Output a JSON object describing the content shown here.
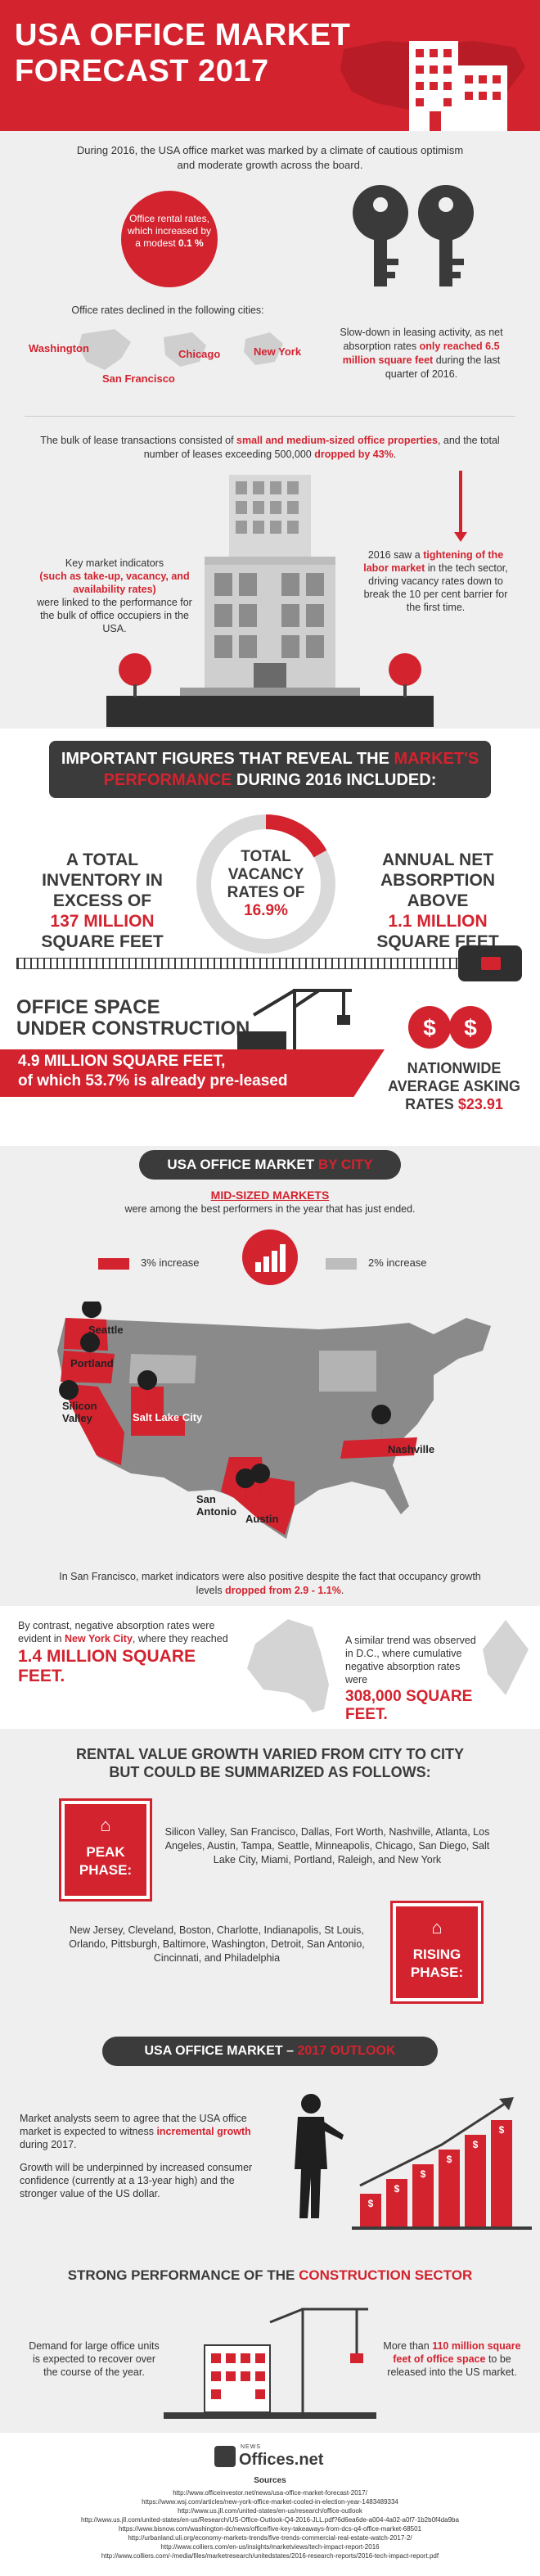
{
  "header": {
    "title_line1": "USA OFFICE MARKET",
    "title_line2": "FORECAST 2017"
  },
  "intro": {
    "text": "During 2016, the USA office market was marked by a climate of cautious optimism and moderate growth across the board."
  },
  "rental": {
    "circle_text": "Office rental rates, which increased by a modest",
    "circle_value": "0.1 %",
    "declined_text": "Office rates declined in the following cities:",
    "cities": [
      "Washington",
      "Chicago",
      "New York",
      "San Francisco"
    ]
  },
  "keys": {
    "text_pre": "Slow-down in leasing activity, as net absorption rates",
    "text_bold": "only reached 6.5 million square feet",
    "text_post": "during the last quarter of 2016."
  },
  "lease": {
    "pre": "The bulk of lease transactions consisted of",
    "bold1": "small and medium-sized office properties",
    "mid": ", and the total number of leases exceeding 500,000",
    "bold2": "dropped by 43%",
    "post": "."
  },
  "indicators": {
    "line1": "Key market indicators",
    "bold": "(such as take-up, vacancy, and availability rates)",
    "line2": "were linked to the performance for the bulk of office occupiers in the USA."
  },
  "tech": {
    "pre": "2016 saw a",
    "bold": "tightening of the labor market",
    "post": "in the tech sector, driving vacancy rates down to break the 10 per cent barrier for the first time."
  },
  "important": {
    "pre": "IMPORTANT FIGURES THAT REVEAL THE",
    "red": "MARKET'S PERFORMANCE",
    "post": "DURING 2016 INCLUDED:"
  },
  "inventory": {
    "pre": "A TOTAL INVENTORY IN EXCESS OF",
    "value": "137 MILLION",
    "post": "SQUARE FEET"
  },
  "vacancy": {
    "label": "TOTAL VACANCY RATES OF",
    "value": "16.9%",
    "fraction": 0.169
  },
  "absorption": {
    "pre": "ANNUAL NET ABSORPTION ABOVE",
    "value": "1.1 MILLION",
    "post": "SQUARE FEET"
  },
  "construction": {
    "title1": "OFFICE SPACE",
    "title2": "UNDER CONSTRUCTION",
    "value": "4.9 MILLION SQUARE FEET,",
    "sub": "of which 53.7% is already pre-leased"
  },
  "asking": {
    "label": "NATIONWIDE AVERAGE ASKING RATES",
    "value": "$23.91"
  },
  "bycity": {
    "pre": "USA OFFICE MARKET",
    "red": "BY CITY",
    "mid_title": "MID-SIZED MARKETS",
    "mid_sub": "were among the best performers in the year that has just ended.",
    "legend1": "3% increase",
    "legend2": "2% increase",
    "cities": [
      "Seattle",
      "Portland",
      "Silicon Valley",
      "Salt Lake City",
      "Nashville",
      "San Antonio",
      "Austin"
    ]
  },
  "sf": {
    "pre": "In San Francisco, market indicators were also positive despite the fact that occupancy growth levels",
    "bold": "dropped from 2.9 - 1.1%",
    "post": "."
  },
  "ny": {
    "pre": "By contrast, negative absorption rates were evident in",
    "bold": "New York City",
    "mid": ", where they reached",
    "value": "1.4 MILLION SQUARE FEET."
  },
  "dc": {
    "pre": "A similar trend was observed in D.C., where cumulative negative absorption rates were",
    "value": "308,000 SQUARE FEET."
  },
  "rental_value": {
    "title1": "RENTAL VALUE GROWTH VARIED FROM CITY TO CITY",
    "title2": "BUT COULD BE SUMMARIZED AS FOLLOWS:",
    "peak_label": "PEAK PHASE:",
    "peak_text": "Silicon Valley, San Francisco, Dallas, Fort Worth, Nashville, Atlanta, Los Angeles, Austin, Tampa, Seattle, Minneapolis, Chicago, San Diego, Salt Lake City, Miami, Portland, Raleigh, and New York",
    "rising_label": "RISING PHASE:",
    "rising_text": "New Jersey, Cleveland, Boston, Charlotte, Indianapolis, St Louis, Orlando, Pittsburgh, Baltimore, Washington, Detroit, San Antonio, Cincinnati, and Philadelphia"
  },
  "outlook": {
    "pre": "USA OFFICE MARKET –",
    "red": "2017 OUTLOOK",
    "p1_pre": "Market analysts seem to agree that the USA office market is expected to witness",
    "p1_bold": "incremental growth",
    "p1_post": "during 2017.",
    "p2": "Growth will be underpinned by increased consumer confidence (currently at a 13-year high) and the stronger value of the US dollar."
  },
  "strong": {
    "pre": "STRONG PERFORMANCE OF THE",
    "red": "CONSTRUCTION SECTOR",
    "left": "Demand for large office units is expected to recover over the course of the year.",
    "right_pre": "More than",
    "right_bold": "110 million square feet of office space",
    "right_post": "to be released into the US market."
  },
  "footer": {
    "logo_small": "NEWS",
    "logo": "Offices.net",
    "sources_title": "Sources",
    "sources": [
      "http://www.officeinvestor.net/news/usa-office-market-forecast-2017/",
      "https://www.wsj.com/articles/new-york-office-market-cooled-in-election-year-1483489334",
      "http://www.us.jll.com/united-states/en-us/research/office-outlook",
      "http://www.us.jll.com/united-states/en-us/Research/US-Office-Outlook-Q4-2016-JLL.pdf?6d6ea6de-a004-4a02-a0f7-1b2b0f4da9ba",
      "https://www.bisnow.com/washington-dc/news/office/five-key-takeaways-from-dcs-q4-office-market-68501",
      "http://urbanland.uli.org/economy-markets-trends/five-trends-commercial-real-estate-watch-2017-2/",
      "http://www.colliers.com/en-us/insights/marketviews/tech-impact-report-2016",
      "http://www.colliers.com/-/media/files/marketresearch/unitedstates/2016-research-reports/2016-tech-impact-report.pdf"
    ]
  },
  "colors": {
    "accent": "#d3232f",
    "dark": "#3b3b3b",
    "bg": "#efefef",
    "map": "#8a8a8a"
  }
}
